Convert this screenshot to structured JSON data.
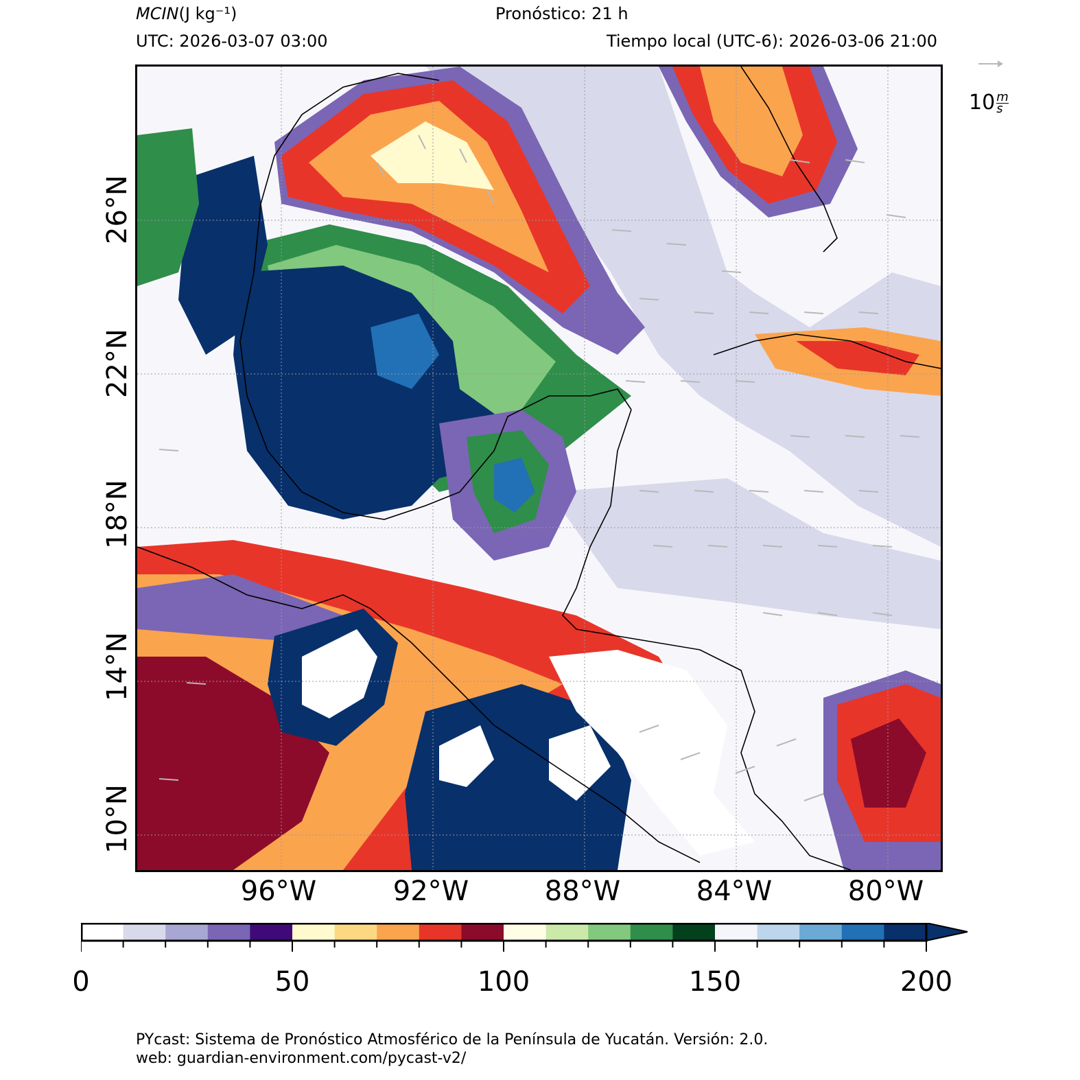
{
  "header": {
    "variable": "MCIN",
    "units": "(J kg⁻¹)",
    "forecast": "Pronóstico: 21 h",
    "utc": "UTC:  2026-03-07 03:00",
    "local": "Tiempo local (UTC-6): 2026-03-06 21:00"
  },
  "map": {
    "lat_labels": [
      "26°N",
      "22°N",
      "18°N",
      "14°N",
      "10°N"
    ],
    "lon_labels": [
      "96°W",
      "92°W",
      "88°W",
      "84°W",
      "80°W"
    ],
    "wind_key": {
      "value": "10",
      "unit_num": "m",
      "unit_den": "s"
    }
  },
  "colorbar": {
    "ticks": [
      "0",
      "50",
      "100",
      "150",
      "200"
    ],
    "min": 0,
    "max": 200,
    "step": 10,
    "extend": "max",
    "colors": [
      "#ffffff",
      "#d9d9ec",
      "#a8a6d2",
      "#7a66b4",
      "#3f0a78",
      "#fffbcf",
      "#fdd882",
      "#fba44e",
      "#e8352a",
      "#8c0b2a",
      "#fffde6",
      "#cbeaa9",
      "#82c87e",
      "#2f8e4a",
      "#03401c",
      "#f4f6fb",
      "#bdd6ec",
      "#6aaad4",
      "#2270b5",
      "#08306b"
    ],
    "extend_color": "#08306b"
  },
  "footer": {
    "line1": "PYcast: Sistema de Pronóstico Atmosférico de la Península de Yucatán. Versión: 2.0.",
    "line2": "web: guardian-environment.com/pycast-v2/"
  }
}
